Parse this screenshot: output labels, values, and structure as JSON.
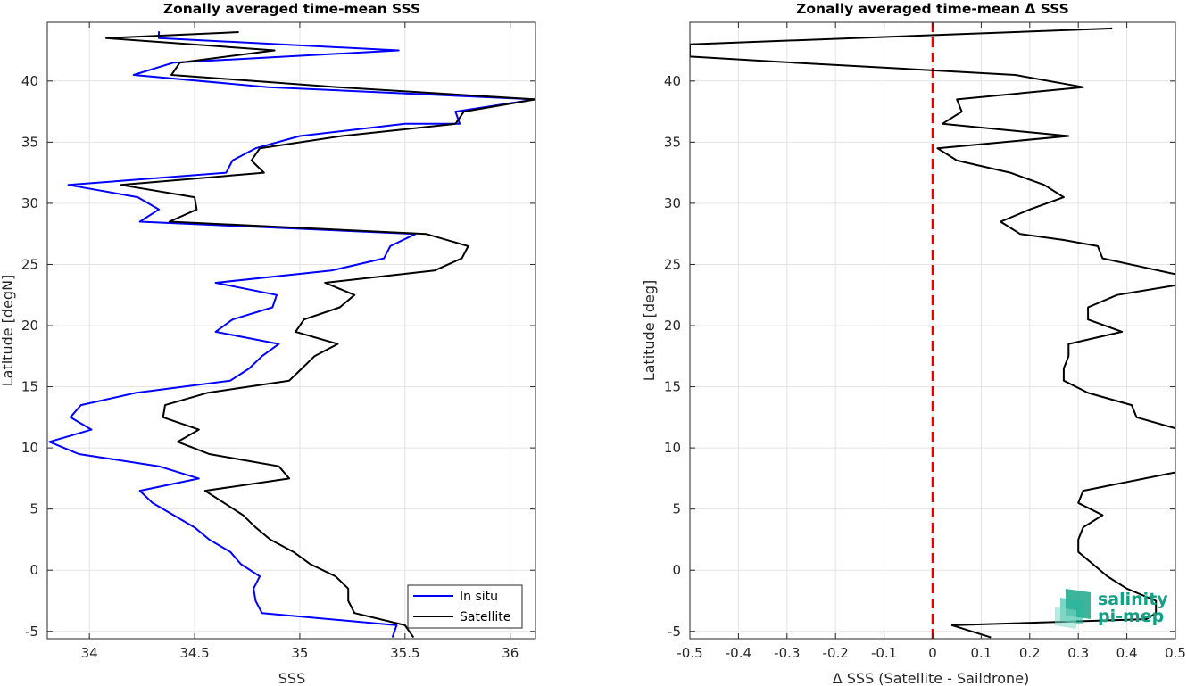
{
  "chart_data": [
    {
      "type": "line",
      "title": "Zonally averaged time-mean SSS",
      "xlabel": "SSS",
      "ylabel": "Latitude [degN]",
      "xlim": [
        33.8,
        36.12
      ],
      "ylim": [
        -5.6,
        44.8
      ],
      "xticks": [
        34,
        34.5,
        35,
        35.5,
        36
      ],
      "xtick_labels": [
        "34",
        "34.5",
        "35",
        "35.5",
        "36"
      ],
      "yticks": [
        -5,
        0,
        5,
        10,
        15,
        20,
        25,
        30,
        35,
        40
      ],
      "ytick_labels": [
        "-5",
        "0",
        "5",
        "10",
        "15",
        "20",
        "25",
        "30",
        "35",
        "40"
      ],
      "grid": true,
      "legend_position": "bottom-right",
      "series": [
        {
          "name": "In situ",
          "color": "#0000ff",
          "points": [
            [
              34.33,
              43.5
            ],
            [
              34.33,
              44.0
            ],
            [
              34.33,
              43.5
            ],
            [
              35.47,
              42.5
            ],
            [
              34.4,
              41.5
            ],
            [
              34.21,
              40.5
            ],
            [
              34.85,
              39.5
            ],
            [
              36.12,
              38.5
            ],
            [
              35.74,
              37.5
            ],
            [
              35.76,
              36.5
            ],
            [
              35.5,
              36.5
            ],
            [
              35.0,
              35.5
            ],
            [
              34.79,
              34.5
            ],
            [
              34.68,
              33.5
            ],
            [
              34.65,
              32.5
            ],
            [
              33.9,
              31.5
            ],
            [
              34.23,
              30.5
            ],
            [
              34.33,
              29.5
            ],
            [
              34.24,
              28.5
            ],
            [
              35.55,
              27.5
            ],
            [
              35.43,
              26.5
            ],
            [
              35.4,
              25.5
            ],
            [
              35.15,
              24.5
            ],
            [
              34.6,
              23.5
            ],
            [
              34.89,
              22.5
            ],
            [
              34.87,
              21.5
            ],
            [
              34.68,
              20.5
            ],
            [
              34.6,
              19.5
            ],
            [
              34.9,
              18.5
            ],
            [
              34.82,
              17.5
            ],
            [
              34.76,
              16.5
            ],
            [
              34.67,
              15.5
            ],
            [
              34.22,
              14.5
            ],
            [
              33.96,
              13.5
            ],
            [
              33.91,
              12.5
            ],
            [
              34.01,
              11.5
            ],
            [
              33.81,
              10.5
            ],
            [
              33.95,
              9.5
            ],
            [
              34.33,
              8.5
            ],
            [
              34.52,
              7.5
            ],
            [
              34.24,
              6.5
            ],
            [
              34.3,
              5.5
            ],
            [
              34.4,
              4.5
            ],
            [
              34.5,
              3.5
            ],
            [
              34.57,
              2.5
            ],
            [
              34.67,
              1.5
            ],
            [
              34.72,
              0.5
            ],
            [
              34.81,
              -0.5
            ],
            [
              34.78,
              -1.5
            ],
            [
              34.79,
              -2.5
            ],
            [
              34.82,
              -3.5
            ],
            [
              35.46,
              -4.5
            ],
            [
              35.44,
              -5.5
            ]
          ]
        },
        {
          "name": "Satellite",
          "color": "#000000",
          "points": [
            [
              34.71,
              44.0
            ],
            [
              34.08,
              43.5
            ],
            [
              34.88,
              42.5
            ],
            [
              34.43,
              41.5
            ],
            [
              34.39,
              40.5
            ],
            [
              35.18,
              39.5
            ],
            [
              36.12,
              38.5
            ],
            [
              35.78,
              37.5
            ],
            [
              35.74,
              36.5
            ],
            [
              35.2,
              35.5
            ],
            [
              34.81,
              34.5
            ],
            [
              34.77,
              33.5
            ],
            [
              34.83,
              32.5
            ],
            [
              34.15,
              31.5
            ],
            [
              34.5,
              30.5
            ],
            [
              34.51,
              29.5
            ],
            [
              34.38,
              28.5
            ],
            [
              35.6,
              27.5
            ],
            [
              35.8,
              26.5
            ],
            [
              35.77,
              25.5
            ],
            [
              35.64,
              24.5
            ],
            [
              35.12,
              23.5
            ],
            [
              35.26,
              22.5
            ],
            [
              35.19,
              21.5
            ],
            [
              35.02,
              20.5
            ],
            [
              34.98,
              19.5
            ],
            [
              35.18,
              18.5
            ],
            [
              35.07,
              17.5
            ],
            [
              35.01,
              16.5
            ],
            [
              34.95,
              15.5
            ],
            [
              34.56,
              14.5
            ],
            [
              34.36,
              13.5
            ],
            [
              34.35,
              12.5
            ],
            [
              34.52,
              11.5
            ],
            [
              34.42,
              10.5
            ],
            [
              34.57,
              9.5
            ],
            [
              34.9,
              8.5
            ],
            [
              34.95,
              7.5
            ],
            [
              34.55,
              6.5
            ],
            [
              34.64,
              5.5
            ],
            [
              34.73,
              4.5
            ],
            [
              34.79,
              3.5
            ],
            [
              34.86,
              2.5
            ],
            [
              34.97,
              1.5
            ],
            [
              35.05,
              0.5
            ],
            [
              35.17,
              -0.5
            ],
            [
              35.23,
              -1.5
            ],
            [
              35.23,
              -2.5
            ],
            [
              35.26,
              -3.5
            ],
            [
              35.5,
              -4.5
            ],
            [
              35.54,
              -5.5
            ]
          ]
        }
      ]
    },
    {
      "type": "line",
      "title": "Zonally averaged time-mean Δ SSS",
      "xlabel": "Δ SSS (Satellite - Saildrone)",
      "ylabel": "Latitude [deg]",
      "xlim": [
        -0.5,
        0.5
      ],
      "ylim": [
        -5.6,
        44.8
      ],
      "xticks": [
        -0.5,
        -0.4,
        -0.3,
        -0.2,
        -0.1,
        0,
        0.1,
        0.2,
        0.3,
        0.4,
        0.5
      ],
      "xtick_labels": [
        "-0.5",
        "-0.4",
        "-0.3",
        "-0.2",
        "-0.1",
        "0",
        "0.1",
        "0.2",
        "0.3",
        "0.4",
        "0.5"
      ],
      "yticks": [
        -5,
        0,
        5,
        10,
        15,
        20,
        25,
        30,
        35,
        40
      ],
      "ytick_labels": [
        "-5",
        "0",
        "5",
        "10",
        "15",
        "20",
        "25",
        "30",
        "35",
        "40"
      ],
      "grid": true,
      "reference_line": {
        "x": 0,
        "color": "#e60000",
        "style": "dashed"
      },
      "series": [
        {
          "name": "",
          "color": "#000000",
          "points": [
            [
              0.37,
              44.3
            ],
            [
              -0.5,
              43.0
            ],
            [
              -0.5,
              42.0
            ],
            [
              -0.33,
              41.6
            ],
            [
              0.17,
              40.5
            ],
            [
              0.31,
              39.5
            ],
            [
              0.05,
              38.5
            ],
            [
              0.06,
              37.5
            ],
            [
              0.02,
              36.5
            ],
            [
              0.28,
              35.5
            ],
            [
              0.01,
              34.5
            ],
            [
              0.05,
              33.5
            ],
            [
              0.16,
              32.5
            ],
            [
              0.23,
              31.5
            ],
            [
              0.27,
              30.5
            ],
            [
              0.2,
              29.5
            ],
            [
              0.14,
              28.5
            ],
            [
              0.18,
              27.5
            ],
            [
              0.27,
              27.0
            ],
            [
              0.34,
              26.5
            ],
            [
              0.35,
              25.5
            ],
            [
              0.5,
              24.2
            ],
            [
              0.5,
              23.3
            ],
            [
              0.38,
              22.5
            ],
            [
              0.32,
              21.5
            ],
            [
              0.32,
              20.5
            ],
            [
              0.39,
              19.5
            ],
            [
              0.28,
              18.5
            ],
            [
              0.28,
              17.5
            ],
            [
              0.27,
              16.5
            ],
            [
              0.27,
              15.5
            ],
            [
              0.32,
              14.5
            ],
            [
              0.41,
              13.5
            ],
            [
              0.42,
              12.5
            ],
            [
              0.5,
              11.6
            ],
            [
              0.5,
              8.0
            ],
            [
              0.31,
              6.5
            ],
            [
              0.3,
              5.5
            ],
            [
              0.35,
              4.5
            ],
            [
              0.31,
              3.5
            ],
            [
              0.3,
              2.5
            ],
            [
              0.3,
              1.5
            ],
            [
              0.33,
              0.5
            ],
            [
              0.36,
              -0.5
            ],
            [
              0.4,
              -1.5
            ],
            [
              0.46,
              -2.5
            ],
            [
              0.46,
              -3.5
            ],
            [
              0.44,
              -4.0
            ],
            [
              0.04,
              -4.5
            ],
            [
              0.12,
              -5.5
            ]
          ]
        }
      ]
    }
  ],
  "legend": {
    "items": [
      {
        "label": "In situ",
        "color": "#0000ff"
      },
      {
        "label": "Satellite",
        "color": "#000000"
      }
    ]
  },
  "logo": {
    "line1": "salinity",
    "line2": "pi-mep"
  }
}
